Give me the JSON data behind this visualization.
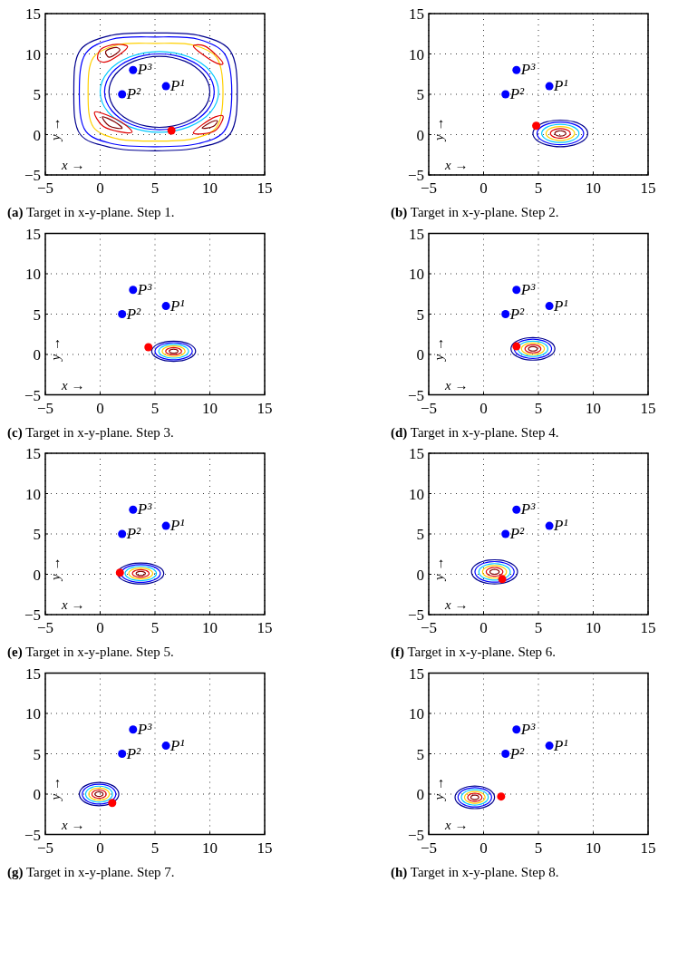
{
  "chart_data": [
    {
      "type": "scatter",
      "title": "(a) Target in x-y-plane. Step 1.",
      "xlabel": "x →",
      "ylabel": "y →",
      "xlim": [
        -5,
        15
      ],
      "ylim": [
        -5,
        15
      ],
      "xticks": [
        -5,
        0,
        5,
        10,
        15
      ],
      "yticks": [
        -5,
        0,
        5,
        10,
        15
      ],
      "grid": true,
      "series": [
        {
          "type": "scatter",
          "color": "#0000ff",
          "marker": "circle",
          "x": [
            6,
            2,
            3
          ],
          "values": [
            6,
            5,
            8
          ]
        },
        {
          "type": "scatter",
          "color": "#ff0000",
          "marker": "circle",
          "x": [
            6.5
          ],
          "values": [
            0.5
          ]
        }
      ],
      "annotations": [
        {
          "text": "P¹",
          "x": 6,
          "y": 6
        },
        {
          "text": "P²",
          "x": 2,
          "y": 5
        },
        {
          "text": "P³",
          "x": 3,
          "y": 8
        }
      ]
    },
    {
      "type": "scatter",
      "title": "(b) Target in x-y-plane. Step 2.",
      "xlabel": "x →",
      "ylabel": "y →",
      "xlim": [
        -5,
        15
      ],
      "ylim": [
        -5,
        15
      ],
      "xticks": [
        -5,
        0,
        5,
        10,
        15
      ],
      "yticks": [
        -5,
        0,
        5,
        10,
        15
      ],
      "grid": true,
      "series": [
        {
          "type": "scatter",
          "color": "#0000ff",
          "marker": "circle",
          "x": [
            6,
            2,
            3
          ],
          "values": [
            6,
            5,
            8
          ]
        },
        {
          "type": "scatter",
          "color": "#ff0000",
          "marker": "circle",
          "x": [
            4.8
          ],
          "values": [
            1.1
          ]
        }
      ],
      "annotations": [
        {
          "text": "P¹",
          "x": 6,
          "y": 6
        },
        {
          "text": "P²",
          "x": 2,
          "y": 5
        },
        {
          "text": "P³",
          "x": 3,
          "y": 8
        }
      ]
    },
    {
      "type": "scatter",
      "title": "(c) Target in x-y-plane. Step 3.",
      "xlabel": "x →",
      "ylabel": "y →",
      "xlim": [
        -5,
        15
      ],
      "ylim": [
        -5,
        15
      ],
      "xticks": [
        -5,
        0,
        5,
        10,
        15
      ],
      "yticks": [
        -5,
        0,
        5,
        10,
        15
      ],
      "grid": true,
      "series": [
        {
          "type": "scatter",
          "color": "#0000ff",
          "marker": "circle",
          "x": [
            6,
            2,
            3
          ],
          "values": [
            6,
            5,
            8
          ]
        },
        {
          "type": "scatter",
          "color": "#ff0000",
          "marker": "circle",
          "x": [
            4.4
          ],
          "values": [
            0.9
          ]
        }
      ],
      "annotations": [
        {
          "text": "P¹",
          "x": 6,
          "y": 6
        },
        {
          "text": "P²",
          "x": 2,
          "y": 5
        },
        {
          "text": "P³",
          "x": 3,
          "y": 8
        }
      ]
    },
    {
      "type": "scatter",
      "title": "(d) Target in x-y-plane. Step 4.",
      "xlabel": "x →",
      "ylabel": "y →",
      "xlim": [
        -5,
        15
      ],
      "ylim": [
        -5,
        15
      ],
      "xticks": [
        -5,
        0,
        5,
        10,
        15
      ],
      "yticks": [
        -5,
        0,
        5,
        10,
        15
      ],
      "grid": true,
      "series": [
        {
          "type": "scatter",
          "color": "#0000ff",
          "marker": "circle",
          "x": [
            6,
            2,
            3
          ],
          "values": [
            6,
            5,
            8
          ]
        },
        {
          "type": "scatter",
          "color": "#ff0000",
          "marker": "circle",
          "x": [
            3
          ],
          "values": [
            1
          ]
        }
      ],
      "annotations": [
        {
          "text": "P¹",
          "x": 6,
          "y": 6
        },
        {
          "text": "P²",
          "x": 2,
          "y": 5
        },
        {
          "text": "P³",
          "x": 3,
          "y": 8
        }
      ]
    },
    {
      "type": "scatter",
      "title": "(e) Target in x-y-plane. Step 5.",
      "xlabel": "x →",
      "ylabel": "y →",
      "xlim": [
        -5,
        15
      ],
      "ylim": [
        -5,
        15
      ],
      "xticks": [
        -5,
        0,
        5,
        10,
        15
      ],
      "yticks": [
        -5,
        0,
        5,
        10,
        15
      ],
      "grid": true,
      "series": [
        {
          "type": "scatter",
          "color": "#0000ff",
          "marker": "circle",
          "x": [
            6,
            2,
            3
          ],
          "values": [
            6,
            5,
            8
          ]
        },
        {
          "type": "scatter",
          "color": "#ff0000",
          "marker": "circle",
          "x": [
            1.8
          ],
          "values": [
            0.2
          ]
        }
      ],
      "annotations": [
        {
          "text": "P¹",
          "x": 6,
          "y": 6
        },
        {
          "text": "P²",
          "x": 2,
          "y": 5
        },
        {
          "text": "P³",
          "x": 3,
          "y": 8
        }
      ]
    },
    {
      "type": "scatter",
      "title": "(f) Target in x-y-plane. Step 6.",
      "xlabel": "x →",
      "ylabel": "y →",
      "xlim": [
        -5,
        15
      ],
      "ylim": [
        -5,
        15
      ],
      "xticks": [
        -5,
        0,
        5,
        10,
        15
      ],
      "yticks": [
        -5,
        0,
        5,
        10,
        15
      ],
      "grid": true,
      "series": [
        {
          "type": "scatter",
          "color": "#0000ff",
          "marker": "circle",
          "x": [
            6,
            2,
            3
          ],
          "values": [
            6,
            5,
            8
          ]
        },
        {
          "type": "scatter",
          "color": "#ff0000",
          "marker": "circle",
          "x": [
            1.7
          ],
          "values": [
            -0.6
          ]
        }
      ],
      "annotations": [
        {
          "text": "P¹",
          "x": 6,
          "y": 6
        },
        {
          "text": "P²",
          "x": 2,
          "y": 5
        },
        {
          "text": "P³",
          "x": 3,
          "y": 8
        }
      ]
    },
    {
      "type": "scatter",
      "title": "(g) Target in x-y-plane. Step 7.",
      "xlabel": "x →",
      "ylabel": "y →",
      "xlim": [
        -5,
        15
      ],
      "ylim": [
        -5,
        15
      ],
      "xticks": [
        -5,
        0,
        5,
        10,
        15
      ],
      "yticks": [
        -5,
        0,
        5,
        10,
        15
      ],
      "grid": true,
      "series": [
        {
          "type": "scatter",
          "color": "#0000ff",
          "marker": "circle",
          "x": [
            6,
            2,
            3
          ],
          "values": [
            6,
            5,
            8
          ]
        },
        {
          "type": "scatter",
          "color": "#ff0000",
          "marker": "circle",
          "x": [
            1.1
          ],
          "values": [
            -1.1
          ]
        }
      ],
      "annotations": [
        {
          "text": "P¹",
          "x": 6,
          "y": 6
        },
        {
          "text": "P²",
          "x": 2,
          "y": 5
        },
        {
          "text": "P³",
          "x": 3,
          "y": 8
        }
      ]
    },
    {
      "type": "scatter",
      "title": "(h) Target in x-y-plane. Step 8.",
      "xlabel": "x →",
      "ylabel": "y →",
      "xlim": [
        -5,
        15
      ],
      "ylim": [
        -5,
        15
      ],
      "xticks": [
        -5,
        0,
        5,
        10,
        15
      ],
      "yticks": [
        -5,
        0,
        5,
        10,
        15
      ],
      "grid": true,
      "series": [
        {
          "type": "scatter",
          "color": "#0000ff",
          "marker": "circle",
          "x": [
            6,
            2,
            3
          ],
          "values": [
            6,
            5,
            8
          ]
        },
        {
          "type": "scatter",
          "color": "#ff0000",
          "marker": "circle",
          "x": [
            1.6
          ],
          "values": [
            -0.3
          ]
        }
      ],
      "annotations": [
        {
          "text": "P¹",
          "x": 6,
          "y": 6
        },
        {
          "text": "P²",
          "x": 2,
          "y": 5
        },
        {
          "text": "P³",
          "x": 3,
          "y": 8
        }
      ]
    }
  ]
}
